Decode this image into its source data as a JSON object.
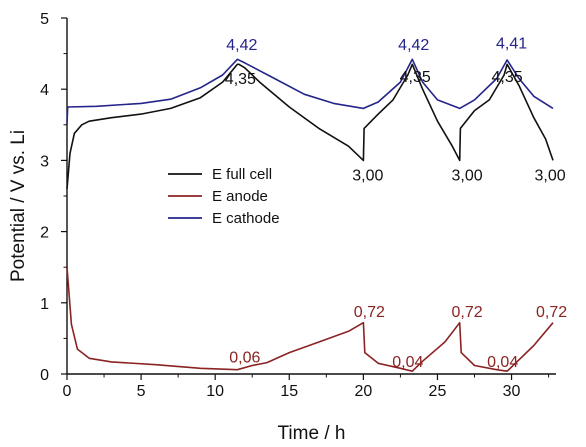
{
  "chart_data": {
    "type": "line",
    "title": "",
    "xlabel": "Time / h",
    "ylabel": "Potential / V vs. Li",
    "xlim": [
      0,
      33
    ],
    "ylim": [
      0,
      5
    ],
    "x_ticks": [
      "0",
      "5",
      "10",
      "15",
      "20",
      "25",
      "30"
    ],
    "x_tick_values": [
      0,
      5,
      10,
      15,
      20,
      25,
      30
    ],
    "y_ticks": [
      "0",
      "1",
      "2",
      "3",
      "4",
      "5"
    ],
    "y_tick_values": [
      0,
      1,
      2,
      3,
      4,
      5
    ],
    "grid": false,
    "legend_position": "center-left",
    "series": [
      {
        "name": "E full cell",
        "color": "#111111",
        "points": [
          [
            0,
            2.6
          ],
          [
            0.2,
            3.1
          ],
          [
            0.5,
            3.38
          ],
          [
            1,
            3.5
          ],
          [
            1.5,
            3.55
          ],
          [
            3,
            3.6
          ],
          [
            5,
            3.65
          ],
          [
            7,
            3.73
          ],
          [
            9,
            3.88
          ],
          [
            10.5,
            4.1
          ],
          [
            11.5,
            4.35
          ],
          [
            11.6,
            4.35
          ],
          [
            12,
            4.3
          ],
          [
            13,
            4.1
          ],
          [
            15,
            3.75
          ],
          [
            17,
            3.45
          ],
          [
            19,
            3.2
          ],
          [
            20,
            3.0
          ],
          [
            20.05,
            3.45
          ],
          [
            21,
            3.65
          ],
          [
            22,
            3.85
          ],
          [
            23,
            4.2
          ],
          [
            23.3,
            4.35
          ],
          [
            24,
            4.0
          ],
          [
            25,
            3.55
          ],
          [
            26,
            3.2
          ],
          [
            26.5,
            3.0
          ],
          [
            26.55,
            3.45
          ],
          [
            27.5,
            3.7
          ],
          [
            28.5,
            3.85
          ],
          [
            29.5,
            4.2
          ],
          [
            29.7,
            4.35
          ],
          [
            30.5,
            4.05
          ],
          [
            31.5,
            3.6
          ],
          [
            32.3,
            3.3
          ],
          [
            32.8,
            3.0
          ]
        ]
      },
      {
        "name": "E anode",
        "color": "#8b2323",
        "points": [
          [
            0,
            1.5
          ],
          [
            0.3,
            0.7
          ],
          [
            0.7,
            0.35
          ],
          [
            1.5,
            0.22
          ],
          [
            3,
            0.17
          ],
          [
            6,
            0.13
          ],
          [
            9,
            0.08
          ],
          [
            11.5,
            0.06
          ],
          [
            12.5,
            0.12
          ],
          [
            13.5,
            0.16
          ],
          [
            15,
            0.3
          ],
          [
            17,
            0.45
          ],
          [
            19,
            0.6
          ],
          [
            20,
            0.72
          ],
          [
            20.1,
            0.3
          ],
          [
            21,
            0.15
          ],
          [
            22.5,
            0.08
          ],
          [
            23.3,
            0.04
          ],
          [
            24,
            0.18
          ],
          [
            25.5,
            0.45
          ],
          [
            26.5,
            0.72
          ],
          [
            26.6,
            0.3
          ],
          [
            27.5,
            0.12
          ],
          [
            29,
            0.06
          ],
          [
            29.7,
            0.04
          ],
          [
            30.5,
            0.2
          ],
          [
            31.5,
            0.4
          ],
          [
            32.8,
            0.72
          ]
        ]
      },
      {
        "name": "E cathode",
        "color": "#24248a",
        "points": [
          [
            0,
            3.52
          ],
          [
            0.05,
            3.75
          ],
          [
            2,
            3.76
          ],
          [
            5,
            3.8
          ],
          [
            7,
            3.86
          ],
          [
            9,
            4.02
          ],
          [
            10.5,
            4.2
          ],
          [
            11.5,
            4.42
          ],
          [
            12,
            4.37
          ],
          [
            14,
            4.15
          ],
          [
            16,
            3.93
          ],
          [
            18,
            3.8
          ],
          [
            20,
            3.73
          ],
          [
            21,
            3.82
          ],
          [
            22.5,
            4.1
          ],
          [
            23.3,
            4.42
          ],
          [
            24,
            4.1
          ],
          [
            25,
            3.85
          ],
          [
            26.5,
            3.73
          ],
          [
            27.5,
            3.85
          ],
          [
            29,
            4.15
          ],
          [
            29.7,
            4.41
          ],
          [
            30.5,
            4.15
          ],
          [
            31.5,
            3.9
          ],
          [
            32.8,
            3.73
          ]
        ]
      }
    ],
    "annotations": [
      {
        "text": "4,42",
        "x": 11.8,
        "y": 4.55,
        "color": "#24248a"
      },
      {
        "text": "4,35",
        "x": 11.7,
        "y": 4.07,
        "color": "#111111"
      },
      {
        "text": "3,00",
        "x": 20.3,
        "y": 2.72,
        "color": "#111111"
      },
      {
        "text": "0,72",
        "x": 20.4,
        "y": 0.8,
        "color": "#8b2323"
      },
      {
        "text": "0,06",
        "x": 12.0,
        "y": 0.16,
        "color": "#8b2323"
      },
      {
        "text": "4,42",
        "x": 23.4,
        "y": 4.55,
        "color": "#24248a"
      },
      {
        "text": "4,35",
        "x": 23.5,
        "y": 4.1,
        "color": "#111111"
      },
      {
        "text": "3,00",
        "x": 27.0,
        "y": 2.72,
        "color": "#111111"
      },
      {
        "text": "0,72",
        "x": 27.0,
        "y": 0.8,
        "color": "#8b2323"
      },
      {
        "text": "0,04",
        "x": 23.0,
        "y": 0.1,
        "color": "#8b2323"
      },
      {
        "text": "4,41",
        "x": 30.0,
        "y": 4.57,
        "color": "#24248a"
      },
      {
        "text": "4,35",
        "x": 29.7,
        "y": 4.1,
        "color": "#111111"
      },
      {
        "text": "3,00",
        "x": 32.6,
        "y": 2.72,
        "color": "#111111"
      },
      {
        "text": "0,72",
        "x": 32.7,
        "y": 0.8,
        "color": "#8b2323"
      },
      {
        "text": "0,04",
        "x": 29.4,
        "y": 0.1,
        "color": "#8b2323"
      }
    ]
  }
}
